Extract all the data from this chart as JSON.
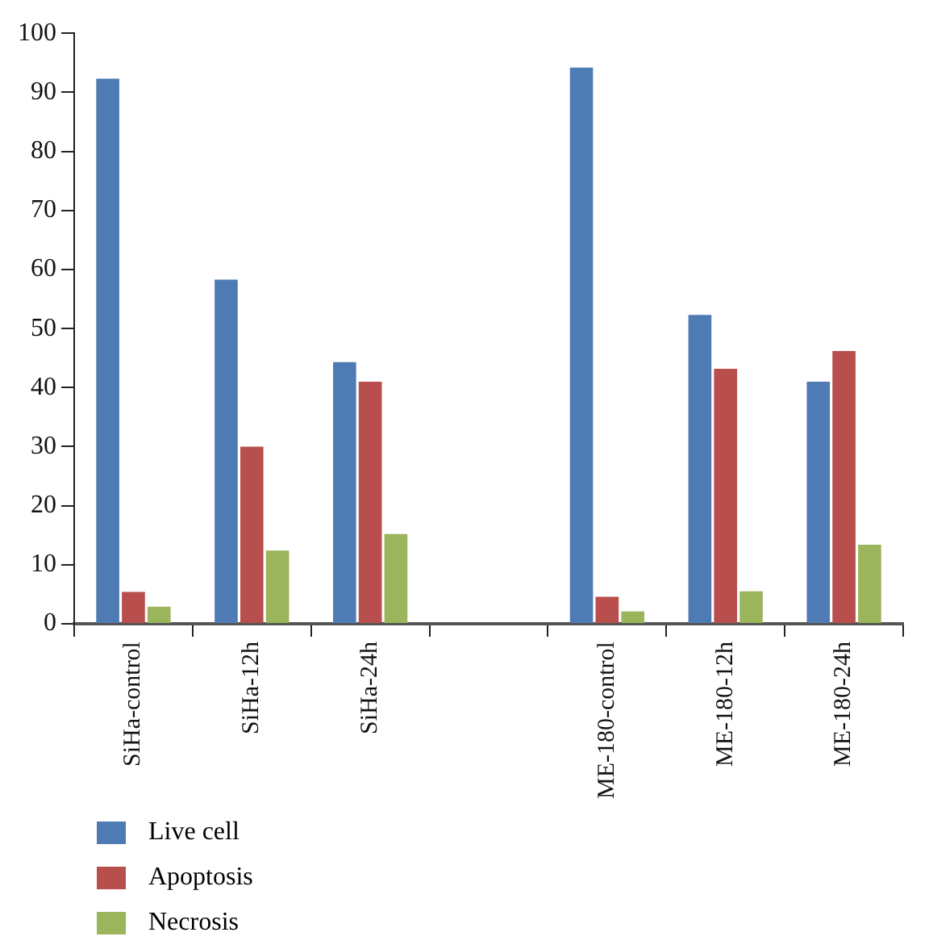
{
  "chart_data": {
    "type": "bar",
    "categories": [
      "SiHa-control",
      "SiHa-12h",
      "SiHa-24h",
      null,
      "ME-180-control",
      "ME-180-12h",
      "ME-180-24h"
    ],
    "series": [
      {
        "name": "Live cell",
        "color": "#4f7bb4",
        "values": [
          92.3,
          58.3,
          44.3,
          null,
          94.2,
          52.3,
          41.0
        ]
      },
      {
        "name": "Apoptosis",
        "color": "#b84f4c",
        "values": [
          5.4,
          30,
          41,
          null,
          4.6,
          43.2,
          46.2
        ]
      },
      {
        "name": "Necrosis",
        "color": "#9ab55c",
        "values": [
          2.9,
          12.4,
          15.2,
          null,
          2.1,
          5.5,
          13.4
        ]
      }
    ],
    "ylim": [
      0,
      100
    ],
    "yticks": [
      0,
      10,
      20,
      30,
      40,
      50,
      60,
      70,
      80,
      90,
      100
    ],
    "grid": false,
    "legend": "bottom left"
  }
}
